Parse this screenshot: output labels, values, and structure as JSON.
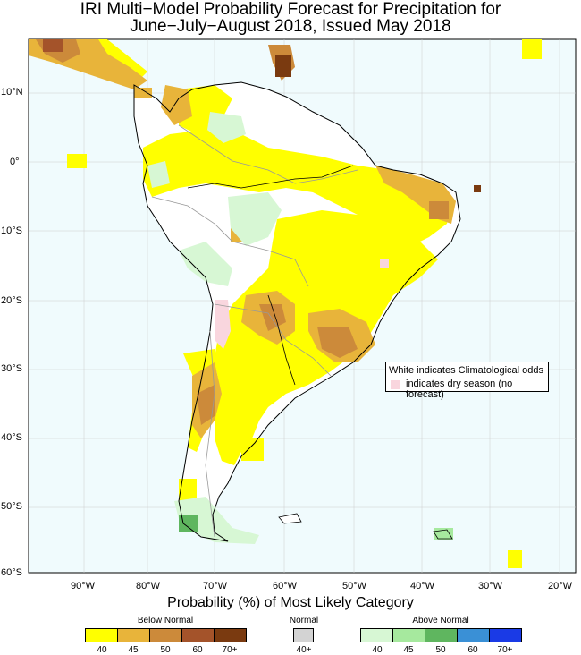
{
  "title": {
    "line1": "IRI Multi−Model Probability Forecast for Precipitation for",
    "line2": "June−July−August 2018, Issued May 2018"
  },
  "map": {
    "region": "South America",
    "lat_labels": [
      "10°N",
      "0°",
      "10°S",
      "20°S",
      "30°S",
      "40°S",
      "50°S",
      "60°S"
    ],
    "lon_labels": [
      "90°W",
      "80°W",
      "70°W",
      "60°W",
      "50°W",
      "40°W",
      "30°W",
      "20°W"
    ],
    "lat_range": [
      -60,
      17
    ],
    "lon_range": [
      -98,
      -18
    ],
    "colors": {
      "background": "#f0fbfd",
      "coast": "#000000",
      "border": "#999999",
      "grid": "#cccccc"
    }
  },
  "note": {
    "line1": "White indicates Climatological odds",
    "line2": "indicates dry season (no forecast)",
    "dry_season_color": "#f9d6de"
  },
  "legend": {
    "title": "Probability (%) of Most Likely Category",
    "below": {
      "label": "Below Normal",
      "ticks": [
        "40",
        "45",
        "50",
        "60",
        "70+"
      ],
      "colors": [
        "#ffff00",
        "#e8b43a",
        "#cc8a3a",
        "#a4532a",
        "#7a3a10"
      ]
    },
    "normal": {
      "label": "Normal",
      "ticks": [
        "40+"
      ],
      "colors": [
        "#d3d3d3"
      ]
    },
    "above": {
      "label": "Above Normal",
      "ticks": [
        "40",
        "45",
        "50",
        "60",
        "70+"
      ],
      "colors": [
        "#d7f7d4",
        "#a6e99e",
        "#5fb65f",
        "#3a90d6",
        "#1a3ae6"
      ]
    }
  }
}
